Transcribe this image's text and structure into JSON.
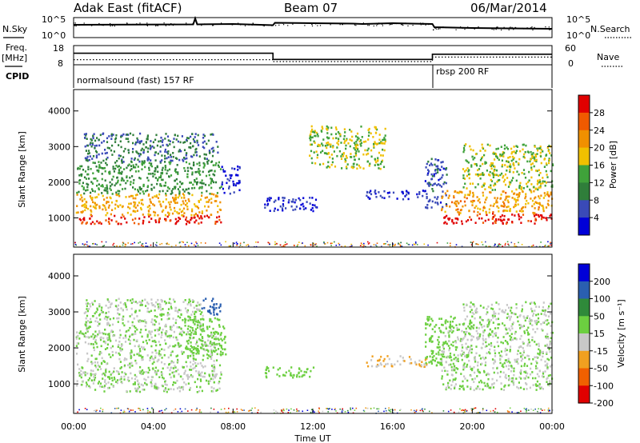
{
  "header": {
    "station": "Adak East (fitACF)",
    "beam": "Beam 07",
    "date": "06/Mar/2014"
  },
  "left_labels": {
    "nsky": "N.Sky",
    "freq": "Freq.",
    "freq_unit": "[MHz]",
    "cpid": "CPID"
  },
  "right_labels": {
    "nsearch": "N.Search",
    "nave": "Nave"
  },
  "cpid_segments": [
    "normalsound (fast) 157 RF",
    "rbsp 200 RF"
  ],
  "chart_data": [
    {
      "type": "line",
      "name": "noise",
      "ylabel_left": "N.Sky",
      "ylabel_right": "N.Search",
      "left_ticks": [
        "10^5",
        "10^0"
      ],
      "right_ticks": [
        "10^5",
        "10^0"
      ],
      "x": [
        0,
        6,
        6.1,
        6.2,
        8,
        10,
        10.1,
        12,
        14,
        14.5,
        16,
        18,
        18.1,
        20,
        22,
        24
      ],
      "y": [
        3.2,
        3.3,
        4.8,
        3.3,
        3.4,
        3.1,
        3.7,
        3.6,
        3.5,
        3.4,
        3.6,
        3.4,
        2.6,
        2.4,
        2.3,
        2.2
      ]
    },
    {
      "type": "line",
      "name": "frequency",
      "left_ticks": [
        "18",
        "8"
      ],
      "right_ticks": [
        "60",
        "0"
      ],
      "x": [
        0,
        10,
        10,
        18,
        18,
        24
      ],
      "freq_mhz": [
        14.0,
        14.0,
        10.8,
        10.8,
        13.5,
        13.5
      ],
      "nave_x": [
        0,
        10,
        10,
        18,
        18,
        24
      ],
      "nave": [
        16,
        16,
        10,
        10,
        24,
        24
      ]
    },
    {
      "type": "heatmap",
      "parameter": "Power",
      "ylabel": "Slant Range [km]",
      "ylim": [
        180,
        4600
      ],
      "yticks": [
        1000,
        2000,
        3000,
        4000
      ],
      "colorbar_label": "Power [dB]",
      "colorbar_ticks": [
        "4",
        "8",
        "12",
        "16",
        "20",
        "24",
        "28"
      ],
      "colors": [
        "#0000d8",
        "#3a4ab8",
        "#2f7e3a",
        "#3fa23a",
        "#f0c000",
        "#f09000",
        "#f05a00",
        "#e00000"
      ],
      "regions": [
        {
          "x": [
            0.1,
            7.4
          ],
          "range": [
            850,
            1100
          ],
          "dB": 29
        },
        {
          "x": [
            0.1,
            7.4
          ],
          "range": [
            1100,
            1700
          ],
          "dB": 21
        },
        {
          "x": [
            0.1,
            7.4
          ],
          "range": [
            1700,
            2600
          ],
          "dB": 13
        },
        {
          "x": [
            0.5,
            7.2
          ],
          "range": [
            2600,
            3400
          ],
          "dB": 10
        },
        {
          "x": [
            7.4,
            8.3
          ],
          "range": [
            1700,
            2500
          ],
          "dB": 5
        },
        {
          "x": [
            9.5,
            12.2
          ],
          "range": [
            1200,
            1600
          ],
          "dB": 6
        },
        {
          "x": [
            11.8,
            15.6
          ],
          "range": [
            2400,
            3600
          ],
          "dB": 17
        },
        {
          "x": [
            14.6,
            17.7
          ],
          "range": [
            1550,
            1800
          ],
          "dB": 6
        },
        {
          "x": [
            17.6,
            18.7
          ],
          "range": [
            1300,
            2700
          ],
          "dB": 8
        },
        {
          "x": [
            18.4,
            24
          ],
          "range": [
            850,
            1150
          ],
          "dB": 30
        },
        {
          "x": [
            18.4,
            24
          ],
          "range": [
            1150,
            1800
          ],
          "dB": 22
        },
        {
          "x": [
            19.5,
            24
          ],
          "range": [
            1800,
            3100
          ],
          "dB": 17
        }
      ]
    },
    {
      "type": "heatmap",
      "parameter": "Velocity",
      "ylabel": "Slant Range [km]",
      "xlabel": "Time UT",
      "xticks": [
        "00:00",
        "04:00",
        "08:00",
        "12:00",
        "16:00",
        "20:00",
        "00:00"
      ],
      "ylim": [
        180,
        4600
      ],
      "yticks": [
        1000,
        2000,
        3000,
        4000
      ],
      "colorbar_label": "Velocity [m s⁻¹]",
      "colorbar_ticks": [
        "200",
        "100",
        "50",
        "15",
        "-15",
        "-50",
        "-100",
        "-200"
      ],
      "colors": [
        "#0000d8",
        "#2a5fb0",
        "#2f8a3a",
        "#6ccf40",
        "#c8c8c8",
        "#f0a020",
        "#f06000",
        "#e00000"
      ],
      "regions": [
        {
          "x": [
            0.1,
            7.4
          ],
          "range": [
            800,
            2500
          ],
          "vel": 0
        },
        {
          "x": [
            0.5,
            6.5
          ],
          "range": [
            2500,
            3400
          ],
          "vel": 0
        },
        {
          "x": [
            5.2,
            7.6
          ],
          "range": [
            1800,
            2900
          ],
          "vel": 40
        },
        {
          "x": [
            6.4,
            7.4
          ],
          "range": [
            2900,
            3400
          ],
          "vel": 150
        },
        {
          "x": [
            9.5,
            12.2
          ],
          "range": [
            1200,
            1500
          ],
          "vel": 30
        },
        {
          "x": [
            14.6,
            17.7
          ],
          "range": [
            1500,
            1800
          ],
          "vel": -60
        },
        {
          "x": [
            17.6,
            19.2
          ],
          "range": [
            1500,
            2900
          ],
          "vel": 30
        },
        {
          "x": [
            18.4,
            24
          ],
          "range": [
            850,
            2700
          ],
          "vel": 0
        },
        {
          "x": [
            19.5,
            24
          ],
          "range": [
            2700,
            3300
          ],
          "vel": 0
        }
      ]
    }
  ]
}
